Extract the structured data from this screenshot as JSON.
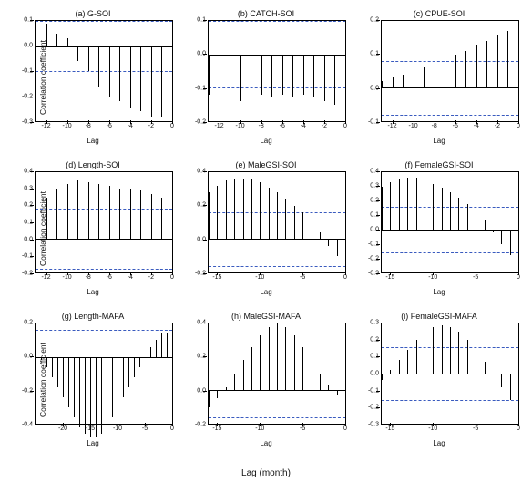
{
  "global_xlabel": "Lag (month)",
  "ylabel": "Correlation coefficient",
  "panel_xlabel": "Lag",
  "colors": {
    "bar": "#000000",
    "ref": "#3a5bbf",
    "border": "#000000",
    "text": "#111111",
    "bg": "#ffffff"
  },
  "fontsize": {
    "title": 9,
    "tick": 7,
    "axis": 8
  },
  "panels": [
    {
      "id": "a",
      "title": "(a) G-SOI",
      "ylim": [
        -0.3,
        0.1
      ],
      "yticks": [
        -0.3,
        -0.2,
        -0.1,
        0.0,
        0.1
      ],
      "xlim": [
        -13,
        0
      ],
      "xticks": [
        -12,
        -10,
        -8,
        -6,
        -4,
        -2,
        0
      ],
      "ref_pos": 0.1,
      "ref_neg": -0.1,
      "lags": [
        -13,
        -12,
        -11,
        -10,
        -9,
        -8,
        -7,
        -6,
        -5,
        -4,
        -3,
        -2,
        -1,
        0
      ],
      "values": [
        0.06,
        0.09,
        0.05,
        0.03,
        -0.06,
        -0.1,
        -0.16,
        -0.2,
        -0.22,
        -0.25,
        -0.26,
        -0.28,
        -0.28,
        -0.29
      ]
    },
    {
      "id": "b",
      "title": "(b) CATCH-SOI",
      "ylim": [
        -0.2,
        0.1
      ],
      "yticks": [
        -0.2,
        -0.1,
        0.0,
        0.1
      ],
      "xlim": [
        -13,
        0
      ],
      "xticks": [
        -12,
        -10,
        -8,
        -6,
        -4,
        -2,
        0
      ],
      "ref_pos": 0.1,
      "ref_neg": -0.1,
      "lags": [
        -13,
        -12,
        -11,
        -10,
        -9,
        -8,
        -7,
        -6,
        -5,
        -4,
        -3,
        -2,
        -1,
        0
      ],
      "values": [
        -0.12,
        -0.14,
        -0.16,
        -0.14,
        -0.14,
        -0.12,
        -0.13,
        -0.12,
        -0.13,
        -0.12,
        -0.13,
        -0.14,
        -0.15,
        -0.14
      ]
    },
    {
      "id": "c",
      "title": "(c) CPUE-SOI",
      "ylim": [
        -0.1,
        0.2
      ],
      "yticks": [
        -0.1,
        0.0,
        0.1,
        0.2
      ],
      "xlim": [
        -13,
        0
      ],
      "xticks": [
        -12,
        -10,
        -8,
        -6,
        -4,
        -2,
        0
      ],
      "ref_pos": 0.08,
      "ref_neg": -0.08,
      "lags": [
        -13,
        -12,
        -11,
        -10,
        -9,
        -8,
        -7,
        -6,
        -5,
        -4,
        -3,
        -2,
        -1,
        0
      ],
      "values": [
        0.02,
        0.03,
        0.04,
        0.05,
        0.06,
        0.07,
        0.08,
        0.1,
        0.11,
        0.13,
        0.14,
        0.16,
        0.17,
        0.19
      ]
    },
    {
      "id": "d",
      "title": "(d) Length-SOI",
      "ylim": [
        -0.2,
        0.4
      ],
      "yticks": [
        -0.2,
        -0.1,
        0.0,
        0.1,
        0.2,
        0.3,
        0.4
      ],
      "xlim": [
        -13,
        0
      ],
      "xticks": [
        -12,
        -10,
        -8,
        -6,
        -4,
        -2,
        0
      ],
      "ref_pos": 0.18,
      "ref_neg": -0.18,
      "lags": [
        -13,
        -12,
        -11,
        -10,
        -9,
        -8,
        -7,
        -6,
        -5,
        -4,
        -3,
        -2,
        -1,
        0
      ],
      "values": [
        0.2,
        0.25,
        0.3,
        0.33,
        0.35,
        0.34,
        0.33,
        0.32,
        0.3,
        0.3,
        0.29,
        0.27,
        0.25,
        0.22
      ]
    },
    {
      "id": "e",
      "title": "(e) MaleGSI-SOI",
      "ylim": [
        -0.2,
        0.4
      ],
      "yticks": [
        -0.2,
        0.0,
        0.2,
        0.4
      ],
      "xlim": [
        -16,
        0
      ],
      "xticks": [
        -15,
        -10,
        -5,
        0
      ],
      "ref_pos": 0.16,
      "ref_neg": -0.16,
      "lags": [
        -16,
        -15,
        -14,
        -13,
        -12,
        -11,
        -10,
        -9,
        -8,
        -7,
        -6,
        -5,
        -4,
        -3,
        -2,
        -1,
        0
      ],
      "values": [
        0.28,
        0.32,
        0.35,
        0.36,
        0.36,
        0.36,
        0.34,
        0.31,
        0.28,
        0.24,
        0.2,
        0.16,
        0.1,
        0.04,
        -0.04,
        -0.1,
        -0.15
      ]
    },
    {
      "id": "f",
      "title": "(f) FemaleGSI-SOI",
      "ylim": [
        -0.3,
        0.4
      ],
      "yticks": [
        -0.3,
        -0.2,
        -0.1,
        0.0,
        0.1,
        0.2,
        0.3,
        0.4
      ],
      "xlim": [
        -16,
        0
      ],
      "xticks": [
        -15,
        -10,
        -5,
        0
      ],
      "ref_pos": 0.16,
      "ref_neg": -0.16,
      "lags": [
        -16,
        -15,
        -14,
        -13,
        -12,
        -11,
        -10,
        -9,
        -8,
        -7,
        -6,
        -5,
        -4,
        -3,
        -2,
        -1,
        0
      ],
      "values": [
        0.3,
        0.33,
        0.35,
        0.36,
        0.36,
        0.35,
        0.32,
        0.29,
        0.26,
        0.22,
        0.18,
        0.12,
        0.06,
        -0.02,
        -0.1,
        -0.18,
        -0.25
      ]
    },
    {
      "id": "g",
      "title": "(g) Length-MAFA",
      "ylim": [
        -0.4,
        0.2
      ],
      "yticks": [
        -0.4,
        -0.2,
        0.0,
        0.2
      ],
      "xlim": [
        -25,
        0
      ],
      "xticks": [
        -20,
        -15,
        -10,
        -5,
        0
      ],
      "ref_pos": 0.16,
      "ref_neg": -0.16,
      "lags": [
        -25,
        -24,
        -23,
        -22,
        -21,
        -20,
        -19,
        -18,
        -17,
        -16,
        -15,
        -14,
        -13,
        -12,
        -11,
        -10,
        -9,
        -8,
        -7,
        -6,
        -5,
        -4,
        -3,
        -2,
        -1,
        0
      ],
      "values": [
        0.02,
        -0.02,
        -0.06,
        -0.12,
        -0.18,
        -0.24,
        -0.3,
        -0.36,
        -0.42,
        -0.46,
        -0.48,
        -0.48,
        -0.46,
        -0.42,
        -0.36,
        -0.3,
        -0.24,
        -0.18,
        -0.12,
        -0.06,
        0.0,
        0.06,
        0.1,
        0.14,
        0.14,
        0.12
      ]
    },
    {
      "id": "h",
      "title": "(h) MaleGSI-MAFA",
      "ylim": [
        -0.2,
        0.4
      ],
      "yticks": [
        -0.2,
        0.0,
        0.2,
        0.4
      ],
      "xlim": [
        -16,
        0
      ],
      "xticks": [
        -15,
        -10,
        -5,
        0
      ],
      "ref_pos": 0.16,
      "ref_neg": -0.16,
      "lags": [
        -16,
        -15,
        -14,
        -13,
        -12,
        -11,
        -10,
        -9,
        -8,
        -7,
        -6,
        -5,
        -4,
        -3,
        -2,
        -1,
        0
      ],
      "values": [
        -0.1,
        -0.05,
        0.02,
        0.1,
        0.18,
        0.26,
        0.33,
        0.38,
        0.4,
        0.38,
        0.33,
        0.26,
        0.18,
        0.1,
        0.03,
        -0.03,
        -0.06
      ]
    },
    {
      "id": "i",
      "title": "(i) FemaleGSI-MAFA",
      "ylim": [
        -0.3,
        0.3
      ],
      "yticks": [
        -0.3,
        -0.2,
        -0.1,
        0.0,
        0.1,
        0.2,
        0.3
      ],
      "xlim": [
        -16,
        0
      ],
      "xticks": [
        -15,
        -10,
        -5,
        0
      ],
      "ref_pos": 0.16,
      "ref_neg": -0.16,
      "lags": [
        -16,
        -15,
        -14,
        -13,
        -12,
        -11,
        -10,
        -9,
        -8,
        -7,
        -6,
        -5,
        -4,
        -3,
        -2,
        -1,
        0
      ],
      "values": [
        -0.04,
        0.02,
        0.08,
        0.14,
        0.2,
        0.25,
        0.28,
        0.29,
        0.28,
        0.25,
        0.2,
        0.14,
        0.07,
        0.0,
        -0.08,
        -0.16,
        -0.24
      ]
    }
  ]
}
